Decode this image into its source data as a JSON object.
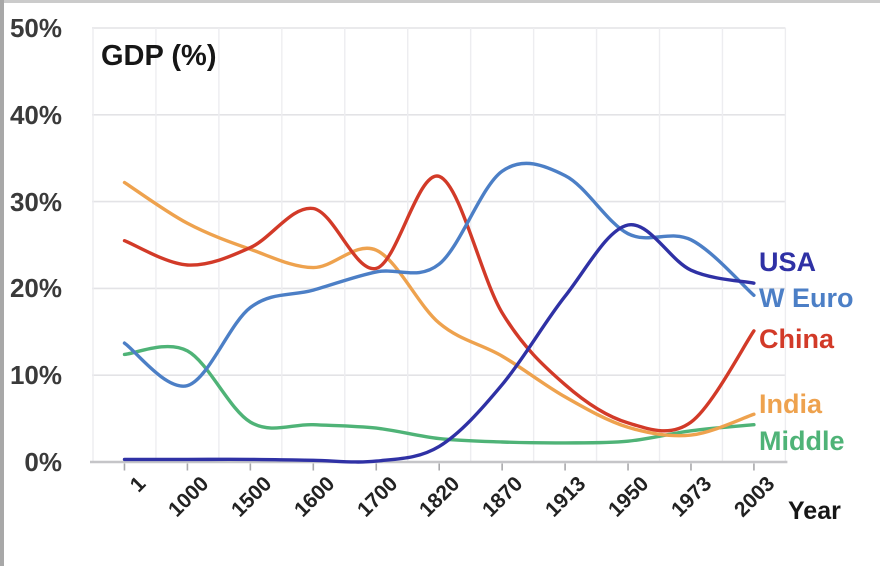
{
  "chart_data": {
    "type": "line",
    "title": "GDP (%)",
    "xlabel": "Year",
    "ylabel": "",
    "ylim": [
      0,
      50
    ],
    "ytick_labels": [
      "0%",
      "10%",
      "20%",
      "30%",
      "40%",
      "50%"
    ],
    "grid": true,
    "smooth": true,
    "legend_position": "right",
    "categories": [
      "1",
      "1000",
      "1500",
      "1600",
      "1700",
      "1820",
      "1870",
      "1913",
      "1950",
      "1973",
      "2003"
    ],
    "series": [
      {
        "name": "USA",
        "color": "#2f31a5",
        "values": [
          0.3,
          0.3,
          0.3,
          0.2,
          0.1,
          1.8,
          8.9,
          19.1,
          27.3,
          22.1,
          20.6
        ]
      },
      {
        "name": "W Euro",
        "color": "#4c7fc6",
        "values": [
          13.7,
          8.8,
          17.8,
          19.8,
          21.9,
          22.8,
          33.5,
          33.0,
          26.3,
          25.6,
          19.2
        ]
      },
      {
        "name": "China",
        "color": "#d23a28",
        "values": [
          25.5,
          22.7,
          24.7,
          29.2,
          22.3,
          32.9,
          17.2,
          8.9,
          4.5,
          4.6,
          15.1
        ]
      },
      {
        "name": "India",
        "color": "#eea24e",
        "values": [
          32.2,
          27.5,
          24.5,
          22.4,
          24.4,
          16.0,
          12.2,
          7.5,
          4.0,
          3.1,
          5.5
        ]
      },
      {
        "name": "Middle",
        "color": "#4fb377",
        "values": [
          12.4,
          12.8,
          4.6,
          4.3,
          3.9,
          2.7,
          2.3,
          2.2,
          2.4,
          3.6,
          4.3
        ]
      }
    ]
  }
}
